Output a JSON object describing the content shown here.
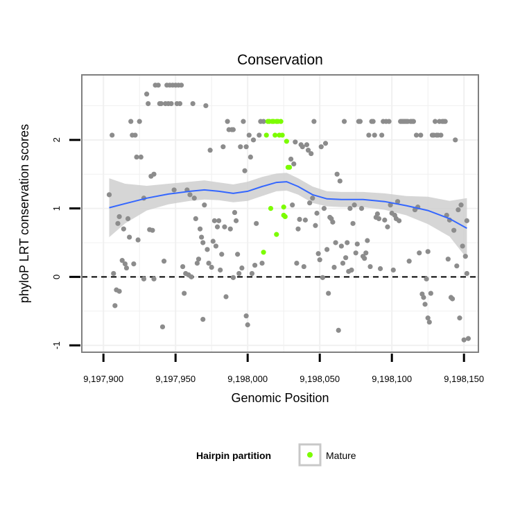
{
  "chart_data": {
    "type": "scatter",
    "title": "Conservation",
    "xlabel": "Genomic Position",
    "ylabel": "phyloP LRT conservation scores",
    "xlim": [
      9197885,
      9198160
    ],
    "ylim": [
      -1.1,
      2.95
    ],
    "xticks": [
      9197900,
      9197950,
      9198000,
      9198050,
      9198100,
      9198150
    ],
    "xtick_labels": [
      "9,197,900",
      "9,197,950",
      "9,198,000",
      "9,198,050",
      "9,198,100",
      "9,198,150"
    ],
    "yticks": [
      -1,
      0,
      1,
      2
    ],
    "ytick_labels": [
      "-1",
      "0",
      "1",
      "2"
    ],
    "grid": true,
    "reference_line": {
      "y": 0,
      "style": "dashed"
    },
    "legend": {
      "title": "Hairpin partition",
      "position": "bottom",
      "entries": [
        "Mature"
      ]
    },
    "colors": {
      "background": "#ffffff",
      "grid": "#f0f0f0",
      "frame": "#7f7f7f",
      "other_points": "#8c8c8c",
      "mature_points": "#7cfc00",
      "smooth_line": "#3366ff",
      "ribbon": "#cfcfcf",
      "reference_line": "#000000"
    },
    "series": [
      {
        "name": "",
        "points": [
          [
            9197904,
            1.2
          ],
          [
            9197906,
            2.07
          ],
          [
            9197907,
            0.05
          ],
          [
            9197908,
            -0.42
          ],
          [
            9197909,
            -0.19
          ],
          [
            9197910,
            0.78
          ],
          [
            9197911,
            0.88
          ],
          [
            9197911,
            -0.21
          ],
          [
            9197913,
            0.24
          ],
          [
            9197914,
            0.7
          ],
          [
            9197915,
            0.19
          ],
          [
            9197916,
            0.13
          ],
          [
            9197917,
            0.85
          ],
          [
            9197918,
            0.58
          ],
          [
            9197919,
            2.27
          ],
          [
            9197920,
            2.07
          ],
          [
            9197921,
            0.19
          ],
          [
            9197922,
            2.07
          ],
          [
            9197923,
            1.75
          ],
          [
            9197924,
            0.54
          ],
          [
            9197925,
            2.27
          ],
          [
            9197926,
            1.75
          ],
          [
            9197928,
            1.15
          ],
          [
            9197928,
            -0.03
          ],
          [
            9197930,
            2.67
          ],
          [
            9197931,
            2.53
          ],
          [
            9197932,
            0.69
          ],
          [
            9197933,
            1.47
          ],
          [
            9197934,
            0.68
          ],
          [
            9197935,
            1.5
          ],
          [
            9197935,
            -0.03
          ],
          [
            9197936,
            2.8
          ],
          [
            9197938,
            2.8
          ],
          [
            9197939,
            2.53
          ],
          [
            9197940,
            2.53
          ],
          [
            9197941,
            -0.73
          ],
          [
            9197942,
            0.23
          ],
          [
            9197943,
            2.53
          ],
          [
            9197944,
            2.8
          ],
          [
            9197945,
            2.53
          ],
          [
            9197946,
            2.8
          ],
          [
            9197947,
            2.53
          ],
          [
            9197948,
            2.8
          ],
          [
            9197949,
            1.27
          ],
          [
            9197950,
            2.8
          ],
          [
            9197951,
            2.53
          ],
          [
            9197952,
            2.8
          ],
          [
            9197953,
            2.53
          ],
          [
            9197954,
            2.8
          ],
          [
            9197955,
            0.15
          ],
          [
            9197956,
            -0.24
          ],
          [
            9197957,
            0.05
          ],
          [
            9197958,
            1.27
          ],
          [
            9197959,
            0.03
          ],
          [
            9197960,
            1.2
          ],
          [
            9197961,
            0.0
          ],
          [
            9197962,
            2.53
          ],
          [
            9197963,
            1.15
          ],
          [
            9197964,
            0.85
          ],
          [
            9197965,
            0.2
          ],
          [
            9197966,
            0.26
          ],
          [
            9197967,
            0.7
          ],
          [
            9197968,
            0.58
          ],
          [
            9197969,
            0.5
          ],
          [
            9197969,
            -0.62
          ],
          [
            9197970,
            1.05
          ],
          [
            9197971,
            2.5
          ],
          [
            9197972,
            0.4
          ],
          [
            9197973,
            0.2
          ],
          [
            9197974,
            1.85
          ],
          [
            9197975,
            0.14
          ],
          [
            9197976,
            0.52
          ],
          [
            9197977,
            0.82
          ],
          [
            9197978,
            0.45
          ],
          [
            9197979,
            0.73
          ],
          [
            9197980,
            0.82
          ],
          [
            9197981,
            0.1
          ],
          [
            9197982,
            0.33
          ],
          [
            9197983,
            1.9
          ],
          [
            9197984,
            0.73
          ],
          [
            9197985,
            -0.29
          ],
          [
            9197986,
            2.27
          ],
          [
            9197987,
            2.15
          ],
          [
            9197988,
            0.7
          ],
          [
            9197989,
            2.15
          ],
          [
            9197990,
            2.15
          ],
          [
            9197990,
            -0.01
          ],
          [
            9197991,
            0.94
          ],
          [
            9197992,
            0.82
          ],
          [
            9197993,
            0.33
          ],
          [
            9197994,
            0.05
          ],
          [
            9197995,
            1.9
          ],
          [
            9197996,
            0.13
          ],
          [
            9197997,
            2.27
          ],
          [
            9197998,
            1.55
          ],
          [
            9197999,
            1.9
          ],
          [
            9197999,
            -0.57
          ],
          [
            9198000,
            -0.7
          ],
          [
            9198001,
            2.07
          ],
          [
            9198002,
            1.75
          ],
          [
            9198003,
            0.05
          ],
          [
            9198004,
            2.0
          ],
          [
            9198005,
            0.17
          ],
          [
            9198006,
            0.78
          ],
          [
            9198008,
            2.07
          ],
          [
            9198009,
            2.27
          ],
          [
            9198010,
            0.2
          ],
          [
            9198011,
            2.27
          ],
          [
            9198030,
            1.72
          ],
          [
            9198031,
            1.05
          ],
          [
            9198032,
            1.65
          ],
          [
            9198033,
            1.97
          ],
          [
            9198034,
            0.2
          ],
          [
            9198035,
            0.7
          ],
          [
            9198036,
            0.84
          ],
          [
            9198037,
            1.93
          ],
          [
            9198038,
            1.9
          ],
          [
            9198039,
            0.15
          ],
          [
            9198040,
            0.83
          ],
          [
            9198041,
            1.93
          ],
          [
            9198042,
            1.85
          ],
          [
            9198043,
            1.08
          ],
          [
            9198044,
            1.8
          ],
          [
            9198045,
            1.15
          ],
          [
            9198046,
            2.27
          ],
          [
            9198047,
            0.75
          ],
          [
            9198048,
            0.93
          ],
          [
            9198049,
            0.34
          ],
          [
            9198050,
            0.25
          ],
          [
            9198051,
            1.9
          ],
          [
            9198052,
            -0.01
          ],
          [
            9198053,
            1.0
          ],
          [
            9198054,
            1.95
          ],
          [
            9198055,
            0.4
          ],
          [
            9198056,
            -0.24
          ],
          [
            9198057,
            0.87
          ],
          [
            9198058,
            0.85
          ],
          [
            9198059,
            0.8
          ],
          [
            9198060,
            0.14
          ],
          [
            9198061,
            0.5
          ],
          [
            9198062,
            1.5
          ],
          [
            9198063,
            -0.78
          ],
          [
            9198064,
            1.4
          ],
          [
            9198065,
            0.45
          ],
          [
            9198066,
            0.2
          ],
          [
            9198067,
            2.27
          ],
          [
            9198068,
            0.28
          ],
          [
            9198069,
            0.5
          ],
          [
            9198070,
            0.08
          ],
          [
            9198071,
            1.0
          ],
          [
            9198072,
            0.1
          ],
          [
            9198073,
            0.78
          ],
          [
            9198074,
            1.05
          ],
          [
            9198075,
            0.35
          ],
          [
            9198076,
            0.48
          ],
          [
            9198077,
            2.27
          ],
          [
            9198078,
            2.27
          ],
          [
            9198079,
            1.0
          ],
          [
            9198080,
            0.3
          ],
          [
            9198081,
            0.27
          ],
          [
            9198082,
            0.35
          ],
          [
            9198083,
            0.53
          ],
          [
            9198084,
            2.07
          ],
          [
            9198085,
            0.15
          ],
          [
            9198086,
            2.27
          ],
          [
            9198087,
            2.27
          ],
          [
            9198088,
            2.07
          ],
          [
            9198089,
            0.87
          ],
          [
            9198090,
            0.92
          ],
          [
            9198091,
            0.85
          ],
          [
            9198092,
            0.12
          ],
          [
            9198093,
            2.07
          ],
          [
            9198094,
            2.27
          ],
          [
            9198095,
            0.83
          ],
          [
            9198096,
            2.27
          ],
          [
            9198097,
            0.73
          ],
          [
            9198098,
            2.27
          ],
          [
            9198099,
            1.05
          ],
          [
            9198100,
            0.93
          ],
          [
            9198101,
            0.1
          ],
          [
            9198102,
            0.9
          ],
          [
            9198103,
            0.85
          ],
          [
            9198104,
            1.1
          ],
          [
            9198105,
            0.82
          ],
          [
            9198106,
            2.27
          ],
          [
            9198107,
            2.27
          ],
          [
            9198108,
            2.27
          ],
          [
            9198109,
            2.27
          ],
          [
            9198110,
            2.27
          ],
          [
            9198111,
            2.27
          ],
          [
            9198112,
            0.23
          ],
          [
            9198113,
            2.27
          ],
          [
            9198114,
            2.27
          ],
          [
            9198115,
            2.27
          ],
          [
            9198116,
            0.98
          ],
          [
            9198117,
            2.07
          ],
          [
            9198118,
            1.02
          ],
          [
            9198119,
            0.35
          ],
          [
            9198120,
            2.07
          ],
          [
            9198121,
            -0.25
          ],
          [
            9198122,
            -0.3
          ],
          [
            9198123,
            -0.4
          ],
          [
            9198124,
            -0.03
          ],
          [
            9198125,
            0.37
          ],
          [
            9198125,
            -0.6
          ],
          [
            9198126,
            -0.66
          ],
          [
            9198127,
            -0.24
          ],
          [
            9198128,
            2.07
          ],
          [
            9198129,
            2.07
          ],
          [
            9198130,
            2.27
          ],
          [
            9198131,
            2.07
          ],
          [
            9198132,
            2.07
          ],
          [
            9198133,
            2.27
          ],
          [
            9198134,
            2.07
          ],
          [
            9198135,
            2.27
          ],
          [
            9198136,
            2.27
          ],
          [
            9198137,
            2.27
          ],
          [
            9198138,
            0.9
          ],
          [
            9198139,
            0.26
          ],
          [
            9198140,
            0.83
          ],
          [
            9198141,
            -0.3
          ],
          [
            9198142,
            -0.32
          ],
          [
            9198143,
            0.68
          ],
          [
            9198144,
            2.0
          ],
          [
            9198145,
            0.16
          ],
          [
            9198146,
            0.98
          ],
          [
            9198147,
            -0.6
          ],
          [
            9198148,
            1.05
          ],
          [
            9198149,
            0.45
          ],
          [
            9198150,
            -0.92
          ],
          [
            9198151,
            0.3
          ],
          [
            9198152,
            0.05
          ],
          [
            9198153,
            -0.9
          ],
          [
            9198152,
            0.82
          ]
        ]
      },
      {
        "name": "Mature",
        "points": [
          [
            9198011,
            0.36
          ],
          [
            9198013,
            2.07
          ],
          [
            9198014,
            2.27
          ],
          [
            9198015,
            2.27
          ],
          [
            9198016,
            1.0
          ],
          [
            9198017,
            2.27
          ],
          [
            9198018,
            2.27
          ],
          [
            9198019,
            2.07
          ],
          [
            9198020,
            2.27
          ],
          [
            9198020,
            0.62
          ],
          [
            9198021,
            2.27
          ],
          [
            9198022,
            2.07
          ],
          [
            9198023,
            2.27
          ],
          [
            9198024,
            2.07
          ],
          [
            9198025,
            0.9
          ],
          [
            9198025,
            1.02
          ],
          [
            9198026,
            0.88
          ],
          [
            9198027,
            1.98
          ],
          [
            9198028,
            1.6
          ],
          [
            9198029,
            1.6
          ]
        ]
      }
    ],
    "smooth": {
      "x": [
        9197904,
        9197915,
        9197930,
        9197945,
        9197960,
        9197970,
        9197980,
        9197990,
        9198000,
        9198010,
        9198020,
        9198027,
        9198035,
        9198045,
        9198055,
        9198065,
        9198080,
        9198095,
        9198110,
        9198125,
        9198140,
        9198152
      ],
      "y": [
        1.01,
        1.07,
        1.15,
        1.21,
        1.25,
        1.27,
        1.25,
        1.22,
        1.25,
        1.32,
        1.38,
        1.39,
        1.32,
        1.2,
        1.14,
        1.13,
        1.13,
        1.1,
        1.04,
        0.97,
        0.85,
        0.71
      ],
      "lower": [
        0.58,
        0.78,
        0.97,
        1.06,
        1.11,
        1.13,
        1.12,
        1.09,
        1.11,
        1.18,
        1.25,
        1.26,
        1.2,
        1.08,
        1.03,
        1.02,
        1.02,
        0.98,
        0.9,
        0.77,
        0.59,
        0.27
      ],
      "upper": [
        1.44,
        1.36,
        1.33,
        1.36,
        1.39,
        1.41,
        1.38,
        1.35,
        1.39,
        1.46,
        1.51,
        1.52,
        1.44,
        1.32,
        1.25,
        1.24,
        1.24,
        1.22,
        1.18,
        1.17,
        1.11,
        1.15
      ]
    }
  }
}
